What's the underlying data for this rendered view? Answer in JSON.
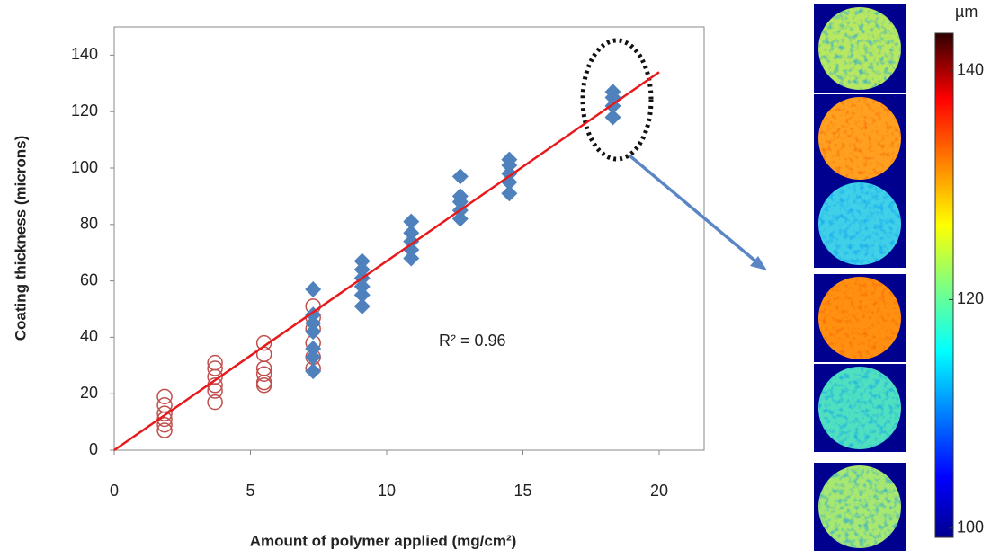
{
  "chart_data": {
    "type": "scatter",
    "xlabel": "Amount of polymer applied (mg/cm²)",
    "ylabel": "Coating thickness (microns)",
    "annotation": "R² = 0.96",
    "xlim": [
      0,
      21.65
    ],
    "ylim": [
      0,
      150
    ],
    "xticks": [
      0,
      5,
      10,
      15,
      20
    ],
    "yticks": [
      0,
      20,
      40,
      60,
      80,
      100,
      120,
      140
    ],
    "series": [
      {
        "marker": "circle-open",
        "color": "#c0504d",
        "x": [
          1.85,
          1.85,
          1.85,
          1.85,
          1.85,
          1.85,
          3.7,
          3.7,
          3.7,
          3.7,
          3.7,
          3.7,
          5.5,
          5.5,
          5.5,
          5.5,
          5.5,
          5.5,
          7.3,
          7.3,
          7.3,
          7.3,
          7.3,
          7.3
        ],
        "y": [
          19,
          16,
          13,
          11,
          9,
          7,
          31,
          29,
          26,
          23,
          21,
          17,
          38,
          34,
          29,
          27,
          24,
          23,
          51,
          47,
          43,
          38,
          33,
          29
        ]
      },
      {
        "marker": "diamond",
        "color": "#4f81bd",
        "x": [
          7.3,
          7.3,
          7.3,
          7.3,
          7.3,
          7.3,
          7.3,
          9.1,
          9.1,
          9.1,
          9.1,
          9.1,
          9.1,
          10.9,
          10.9,
          10.9,
          10.9,
          10.9,
          12.7,
          12.7,
          12.7,
          12.7,
          12.7,
          14.5,
          14.5,
          14.5,
          14.5,
          14.5,
          18.3,
          18.3,
          18.3,
          18.3
        ],
        "y": [
          57,
          48,
          45,
          42,
          36,
          33,
          28,
          67,
          64,
          61,
          58,
          55,
          51,
          81,
          77,
          74,
          71,
          68,
          97,
          90,
          88,
          85,
          82,
          103,
          101,
          98,
          95,
          91,
          127,
          125,
          122,
          118
        ]
      }
    ],
    "fit": {
      "x": [
        0,
        20
      ],
      "y": [
        0,
        134
      ],
      "color": "#e8191c"
    },
    "colorbar": {
      "label": "µm",
      "lim": [
        99.2,
        143.3
      ],
      "ticks": [
        100,
        120,
        140
      ]
    }
  }
}
